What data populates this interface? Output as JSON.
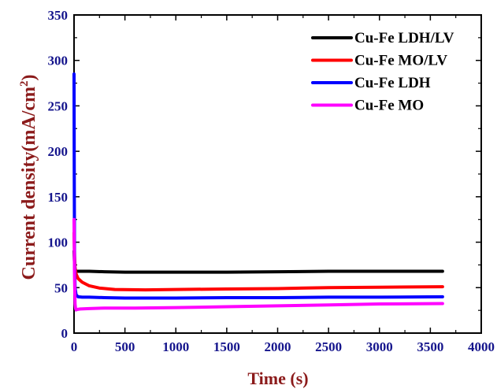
{
  "chart_data": {
    "type": "line",
    "xlabel": "Time (s)",
    "ylabel": "Current density(mA/cm",
    "ylabel_sup": "2",
    "ylabel_close": ")",
    "xlim": [
      0,
      4000
    ],
    "ylim": [
      0,
      350
    ],
    "xticks": [
      0,
      500,
      1000,
      1500,
      2000,
      2500,
      3000,
      3500,
      4000
    ],
    "yticks": [
      0,
      50,
      100,
      150,
      200,
      250,
      300,
      350
    ],
    "grid": false,
    "legend_position": "top-right",
    "series": [
      {
        "name": "Cu-Fe LDH/LV",
        "color": "#000000",
        "x": [
          0,
          5,
          10,
          20,
          40,
          80,
          150,
          300,
          500,
          1000,
          1500,
          2000,
          2500,
          3000,
          3620
        ],
        "y": [
          90,
          75,
          70,
          68,
          68,
          68,
          68,
          67.5,
          67,
          67,
          67,
          67.5,
          68,
          68,
          68
        ]
      },
      {
        "name": "Cu-Fe MO/LV",
        "color": "#ff0000",
        "x": [
          0,
          5,
          10,
          20,
          40,
          80,
          150,
          250,
          400,
          700,
          1000,
          1500,
          2000,
          2500,
          3000,
          3620
        ],
        "y": [
          110,
          85,
          72,
          65,
          60,
          56,
          52,
          49.5,
          48,
          47.5,
          48,
          48.5,
          49,
          50,
          50.5,
          51
        ]
      },
      {
        "name": "Cu-Fe LDH",
        "color": "#0000ff",
        "x": [
          0,
          2,
          5,
          10,
          20,
          40,
          80,
          150,
          300,
          500,
          1000,
          1500,
          2000,
          2500,
          3000,
          3620
        ],
        "y": [
          285,
          180,
          80,
          50,
          42,
          40,
          39.5,
          39.5,
          39,
          38.5,
          38.5,
          39,
          39,
          39.5,
          39.5,
          40
        ]
      },
      {
        "name": "Cu-Fe MO",
        "color": "#ff00ff",
        "x": [
          0,
          5,
          10,
          15,
          20,
          30,
          60,
          150,
          300,
          600,
          1000,
          1500,
          2000,
          2500,
          3000,
          3620
        ],
        "y": [
          125,
          60,
          32,
          27,
          25.5,
          26,
          26.5,
          27,
          27.5,
          27.5,
          28,
          29,
          30,
          31,
          32,
          32.5
        ]
      }
    ]
  }
}
